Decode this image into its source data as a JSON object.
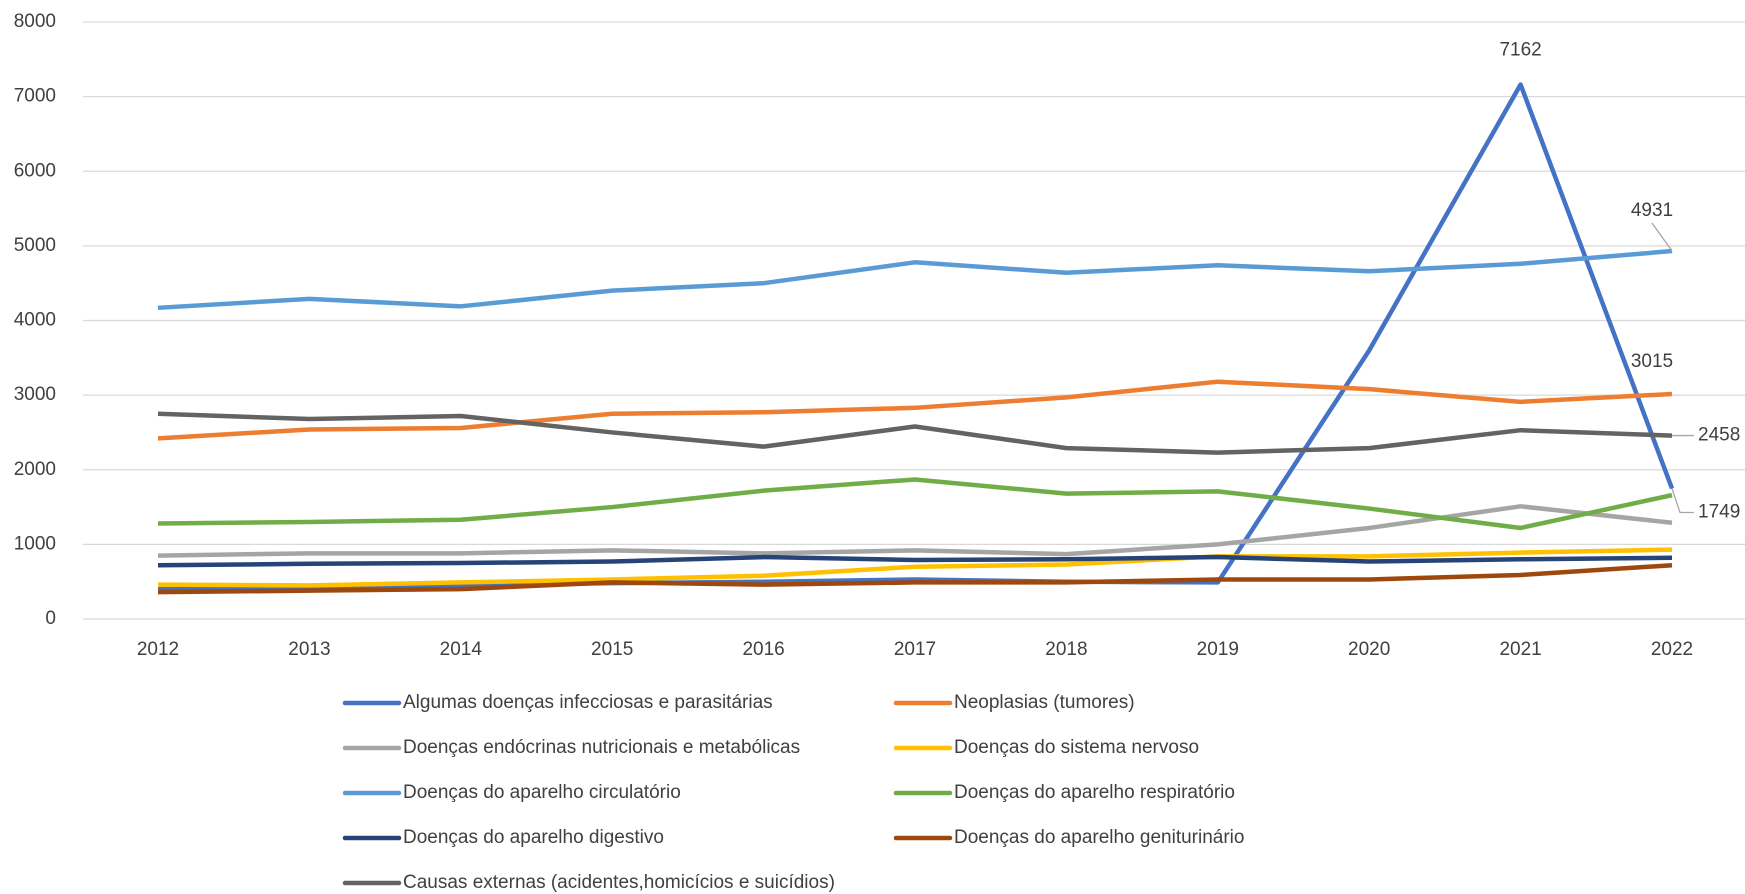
{
  "chart_data": {
    "type": "line",
    "categories": [
      "2012",
      "2013",
      "2014",
      "2015",
      "2016",
      "2017",
      "2018",
      "2019",
      "2020",
      "2021",
      "2022"
    ],
    "ylim": [
      0,
      8000
    ],
    "yticks": [
      0,
      1000,
      2000,
      3000,
      4000,
      5000,
      6000,
      7000,
      8000
    ],
    "grid": true,
    "series": [
      {
        "name": "Algumas doenças infecciosas e parasitárias",
        "color": "#4472c4",
        "values": [
          400,
          420,
          450,
          480,
          500,
          530,
          500,
          490,
          3600,
          7162,
          1749
        ],
        "labeled_points": [
          9,
          10
        ]
      },
      {
        "name": "Neoplasias (tumores)",
        "color": "#ed7d31",
        "values": [
          2420,
          2540,
          2560,
          2750,
          2770,
          2830,
          2970,
          3180,
          3080,
          2910,
          3015
        ],
        "labeled_points": [
          10
        ]
      },
      {
        "name": "Doenças endócrinas nutricionais e metabólicas",
        "color": "#a5a5a5",
        "values": [
          850,
          880,
          880,
          920,
          880,
          920,
          870,
          1000,
          1220,
          1510,
          1290
        ]
      },
      {
        "name": "Doenças do sistema nervoso",
        "color": "#ffc000",
        "values": [
          460,
          450,
          490,
          530,
          580,
          700,
          730,
          840,
          840,
          890,
          930
        ]
      },
      {
        "name": "Doenças do aparelho circulatório",
        "color": "#5b9bd5",
        "values": [
          4170,
          4290,
          4190,
          4400,
          4500,
          4780,
          4640,
          4740,
          4660,
          4760,
          4931
        ],
        "labeled_points": [
          10
        ]
      },
      {
        "name": "Doenças do aparelho respiratório",
        "color": "#70ad47",
        "values": [
          1280,
          1300,
          1330,
          1500,
          1720,
          1870,
          1680,
          1710,
          1480,
          1220,
          1660
        ]
      },
      {
        "name": "Doenças do aparelho digestivo",
        "color": "#264478",
        "values": [
          720,
          740,
          750,
          770,
          830,
          790,
          800,
          830,
          770,
          800,
          820
        ]
      },
      {
        "name": "Doenças do aparelho geniturinário",
        "color": "#9e480e",
        "values": [
          360,
          380,
          400,
          490,
          460,
          490,
          490,
          530,
          530,
          590,
          720
        ]
      },
      {
        "name": "Causas externas (acidentes,homicícios e suicídios)",
        "color": "#636363",
        "values": [
          2750,
          2680,
          2720,
          2500,
          2310,
          2580,
          2290,
          2230,
          2290,
          2530,
          2458
        ],
        "labeled_points": [
          10
        ]
      }
    ]
  }
}
